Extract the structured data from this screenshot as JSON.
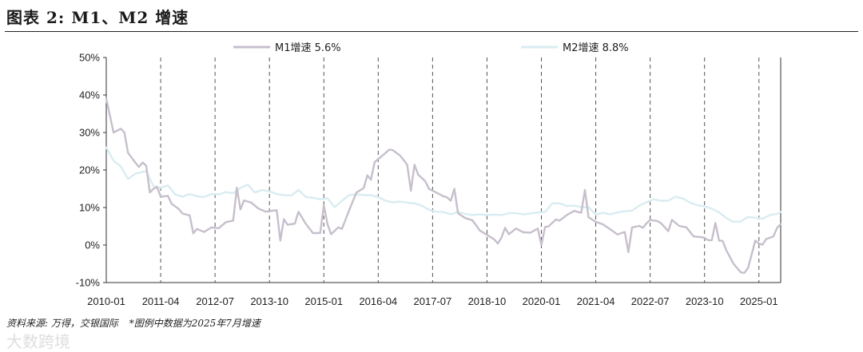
{
  "figure": {
    "title": "图表 2: M1、M2 增速",
    "source": "资料来源: 万得，交银国际",
    "note": "*图例中数据为2025年7月增速",
    "watermark": "大数跨境"
  },
  "colors": {
    "m1": "#c7bfcc",
    "m2": "#d9ecf1",
    "grid": "#555555",
    "axis": "#333333"
  },
  "chart_data": {
    "type": "line",
    "ylim": [
      -10,
      50
    ],
    "yticks": [
      -10,
      0,
      10,
      20,
      30,
      40,
      50
    ],
    "ytick_labels": [
      "-10%",
      "0%",
      "10%",
      "20%",
      "30%",
      "40%",
      "50%"
    ],
    "xlim": [
      "2010-01",
      "2025-07"
    ],
    "xtick_labels": [
      "2010-01",
      "2011-04",
      "2012-07",
      "2013-10",
      "2015-01",
      "2016-04",
      "2017-07",
      "2018-10",
      "2020-01",
      "2021-04",
      "2022-07",
      "2023-10",
      "2025-01"
    ],
    "vertical_gridlines": "dashed at each x tick",
    "legend_placement": "top",
    "series": [
      {
        "name": "M1增速 5.6%",
        "key": "m1",
        "points": [
          [
            "2010-01",
            39.0
          ],
          [
            "2010-03",
            30.0
          ],
          [
            "2010-05",
            31.0
          ],
          [
            "2010-06",
            30.0
          ],
          [
            "2010-07",
            24.6
          ],
          [
            "2010-09",
            22.0
          ],
          [
            "2010-10",
            20.8
          ],
          [
            "2010-11",
            22.0
          ],
          [
            "2010-12",
            21.2
          ],
          [
            "2011-01",
            14.0
          ],
          [
            "2011-02",
            15.0
          ],
          [
            "2011-03",
            15.5
          ],
          [
            "2011-04",
            12.9
          ],
          [
            "2011-06",
            13.1
          ],
          [
            "2011-07",
            11.0
          ],
          [
            "2011-09",
            9.6
          ],
          [
            "2011-10",
            8.4
          ],
          [
            "2011-12",
            7.9
          ],
          [
            "2012-01",
            3.1
          ],
          [
            "2012-02",
            4.3
          ],
          [
            "2012-04",
            3.5
          ],
          [
            "2012-06",
            4.7
          ],
          [
            "2012-08",
            4.5
          ],
          [
            "2012-10",
            6.1
          ],
          [
            "2012-12",
            6.5
          ],
          [
            "2013-01",
            15.3
          ],
          [
            "2013-02",
            9.5
          ],
          [
            "2013-03",
            11.9
          ],
          [
            "2013-05",
            11.3
          ],
          [
            "2013-07",
            9.7
          ],
          [
            "2013-09",
            8.9
          ],
          [
            "2013-12",
            9.3
          ],
          [
            "2014-01",
            1.2
          ],
          [
            "2014-02",
            6.9
          ],
          [
            "2014-03",
            5.4
          ],
          [
            "2014-05",
            5.7
          ],
          [
            "2014-06",
            8.9
          ],
          [
            "2014-08",
            5.7
          ],
          [
            "2014-10",
            3.2
          ],
          [
            "2014-12",
            3.2
          ],
          [
            "2015-01",
            10.6
          ],
          [
            "2015-02",
            5.6
          ],
          [
            "2015-03",
            2.9
          ],
          [
            "2015-05",
            4.7
          ],
          [
            "2015-06",
            4.3
          ],
          [
            "2015-08",
            9.3
          ],
          [
            "2015-10",
            14.0
          ],
          [
            "2015-12",
            15.2
          ],
          [
            "2016-01",
            18.6
          ],
          [
            "2016-02",
            17.4
          ],
          [
            "2016-03",
            22.1
          ],
          [
            "2016-05",
            23.7
          ],
          [
            "2016-07",
            25.4
          ],
          [
            "2016-08",
            25.3
          ],
          [
            "2016-10",
            23.9
          ],
          [
            "2016-12",
            21.4
          ],
          [
            "2017-01",
            14.5
          ],
          [
            "2017-02",
            21.4
          ],
          [
            "2017-03",
            18.8
          ],
          [
            "2017-05",
            17.0
          ],
          [
            "2017-06",
            15.0
          ],
          [
            "2017-08",
            14.0
          ],
          [
            "2017-10",
            13.0
          ],
          [
            "2017-11",
            12.7
          ],
          [
            "2017-12",
            11.8
          ],
          [
            "2018-01",
            15.0
          ],
          [
            "2018-02",
            8.5
          ],
          [
            "2018-04",
            7.2
          ],
          [
            "2018-06",
            6.6
          ],
          [
            "2018-08",
            3.9
          ],
          [
            "2018-10",
            2.7
          ],
          [
            "2018-12",
            1.5
          ],
          [
            "2019-01",
            0.4
          ],
          [
            "2019-02",
            2.0
          ],
          [
            "2019-03",
            4.6
          ],
          [
            "2019-04",
            2.9
          ],
          [
            "2019-06",
            4.4
          ],
          [
            "2019-08",
            3.4
          ],
          [
            "2019-10",
            3.3
          ],
          [
            "2019-12",
            4.4
          ],
          [
            "2020-01",
            0.0
          ],
          [
            "2020-02",
            4.8
          ],
          [
            "2020-03",
            5.0
          ],
          [
            "2020-05",
            6.8
          ],
          [
            "2020-06",
            6.5
          ],
          [
            "2020-08",
            8.0
          ],
          [
            "2020-10",
            9.1
          ],
          [
            "2020-12",
            8.6
          ],
          [
            "2021-01",
            14.7
          ],
          [
            "2021-02",
            7.4
          ],
          [
            "2021-04",
            6.2
          ],
          [
            "2021-06",
            5.5
          ],
          [
            "2021-08",
            4.2
          ],
          [
            "2021-10",
            2.8
          ],
          [
            "2021-12",
            3.5
          ],
          [
            "2022-01",
            -1.9
          ],
          [
            "2022-02",
            4.7
          ],
          [
            "2022-04",
            5.1
          ],
          [
            "2022-05",
            4.6
          ],
          [
            "2022-06",
            5.8
          ],
          [
            "2022-07",
            6.7
          ],
          [
            "2022-09",
            6.4
          ],
          [
            "2022-10",
            5.8
          ],
          [
            "2022-12",
            3.7
          ],
          [
            "2023-01",
            6.7
          ],
          [
            "2023-03",
            5.1
          ],
          [
            "2023-05",
            4.7
          ],
          [
            "2023-07",
            2.3
          ],
          [
            "2023-09",
            2.1
          ],
          [
            "2023-10",
            1.9
          ],
          [
            "2023-11",
            1.3
          ],
          [
            "2023-12",
            1.3
          ],
          [
            "2024-01",
            5.9
          ],
          [
            "2024-02",
            1.2
          ],
          [
            "2024-03",
            1.1
          ],
          [
            "2024-04",
            -1.4
          ],
          [
            "2024-06",
            -5.0
          ],
          [
            "2024-08",
            -7.3
          ],
          [
            "2024-09",
            -7.4
          ],
          [
            "2024-10",
            -6.1
          ],
          [
            "2024-12",
            1.2
          ],
          [
            "2025-01",
            0.4
          ],
          [
            "2025-02",
            0.1
          ],
          [
            "2025-03",
            1.6
          ],
          [
            "2025-05",
            2.3
          ],
          [
            "2025-06",
            4.6
          ],
          [
            "2025-07",
            5.6
          ]
        ]
      },
      {
        "name": "M2增速 8.8%",
        "key": "m2",
        "points": [
          [
            "2010-01",
            26.0
          ],
          [
            "2010-03",
            22.5
          ],
          [
            "2010-05",
            21.0
          ],
          [
            "2010-07",
            17.6
          ],
          [
            "2010-09",
            19.0
          ],
          [
            "2010-11",
            19.5
          ],
          [
            "2010-12",
            19.7
          ],
          [
            "2011-02",
            15.7
          ],
          [
            "2011-04",
            15.3
          ],
          [
            "2011-06",
            15.9
          ],
          [
            "2011-08",
            13.5
          ],
          [
            "2011-10",
            12.9
          ],
          [
            "2011-12",
            13.6
          ],
          [
            "2012-02",
            13.0
          ],
          [
            "2012-04",
            12.8
          ],
          [
            "2012-06",
            13.6
          ],
          [
            "2012-08",
            13.5
          ],
          [
            "2012-10",
            14.1
          ],
          [
            "2012-12",
            13.8
          ],
          [
            "2013-02",
            15.2
          ],
          [
            "2013-04",
            16.1
          ],
          [
            "2013-06",
            14.0
          ],
          [
            "2013-08",
            14.7
          ],
          [
            "2013-10",
            14.3
          ],
          [
            "2013-12",
            13.6
          ],
          [
            "2014-02",
            13.3
          ],
          [
            "2014-04",
            13.2
          ],
          [
            "2014-06",
            14.7
          ],
          [
            "2014-08",
            12.8
          ],
          [
            "2014-10",
            12.6
          ],
          [
            "2014-12",
            12.2
          ],
          [
            "2015-02",
            12.5
          ],
          [
            "2015-04",
            10.1
          ],
          [
            "2015-06",
            11.8
          ],
          [
            "2015-08",
            13.3
          ],
          [
            "2015-10",
            13.5
          ],
          [
            "2015-12",
            13.3
          ],
          [
            "2016-02",
            13.3
          ],
          [
            "2016-04",
            12.8
          ],
          [
            "2016-06",
            11.8
          ],
          [
            "2016-08",
            11.4
          ],
          [
            "2016-10",
            11.6
          ],
          [
            "2016-12",
            11.3
          ],
          [
            "2017-02",
            11.1
          ],
          [
            "2017-04",
            10.5
          ],
          [
            "2017-06",
            9.4
          ],
          [
            "2017-08",
            8.9
          ],
          [
            "2017-10",
            8.8
          ],
          [
            "2017-12",
            8.2
          ],
          [
            "2018-02",
            8.8
          ],
          [
            "2018-04",
            8.3
          ],
          [
            "2018-06",
            8.0
          ],
          [
            "2018-08",
            8.2
          ],
          [
            "2018-10",
            8.0
          ],
          [
            "2018-12",
            8.1
          ],
          [
            "2019-02",
            8.0
          ],
          [
            "2019-04",
            8.5
          ],
          [
            "2019-06",
            8.5
          ],
          [
            "2019-08",
            8.2
          ],
          [
            "2019-10",
            8.4
          ],
          [
            "2019-12",
            8.7
          ],
          [
            "2020-02",
            8.8
          ],
          [
            "2020-04",
            11.1
          ],
          [
            "2020-06",
            11.1
          ],
          [
            "2020-08",
            10.4
          ],
          [
            "2020-10",
            10.5
          ],
          [
            "2020-12",
            10.1
          ],
          [
            "2021-02",
            10.1
          ],
          [
            "2021-04",
            8.1
          ],
          [
            "2021-06",
            8.6
          ],
          [
            "2021-08",
            8.2
          ],
          [
            "2021-10",
            8.7
          ],
          [
            "2021-12",
            9.0
          ],
          [
            "2022-02",
            9.2
          ],
          [
            "2022-04",
            10.5
          ],
          [
            "2022-06",
            11.4
          ],
          [
            "2022-08",
            12.2
          ],
          [
            "2022-10",
            11.8
          ],
          [
            "2022-12",
            11.8
          ],
          [
            "2023-02",
            12.9
          ],
          [
            "2023-04",
            12.4
          ],
          [
            "2023-06",
            11.3
          ],
          [
            "2023-08",
            10.6
          ],
          [
            "2023-10",
            10.3
          ],
          [
            "2023-12",
            9.7
          ],
          [
            "2024-02",
            8.7
          ],
          [
            "2024-04",
            7.2
          ],
          [
            "2024-06",
            6.2
          ],
          [
            "2024-08",
            6.3
          ],
          [
            "2024-10",
            7.5
          ],
          [
            "2024-12",
            7.3
          ],
          [
            "2025-02",
            7.0
          ],
          [
            "2025-04",
            8.0
          ],
          [
            "2025-06",
            8.3
          ],
          [
            "2025-07",
            8.8
          ]
        ]
      }
    ]
  }
}
